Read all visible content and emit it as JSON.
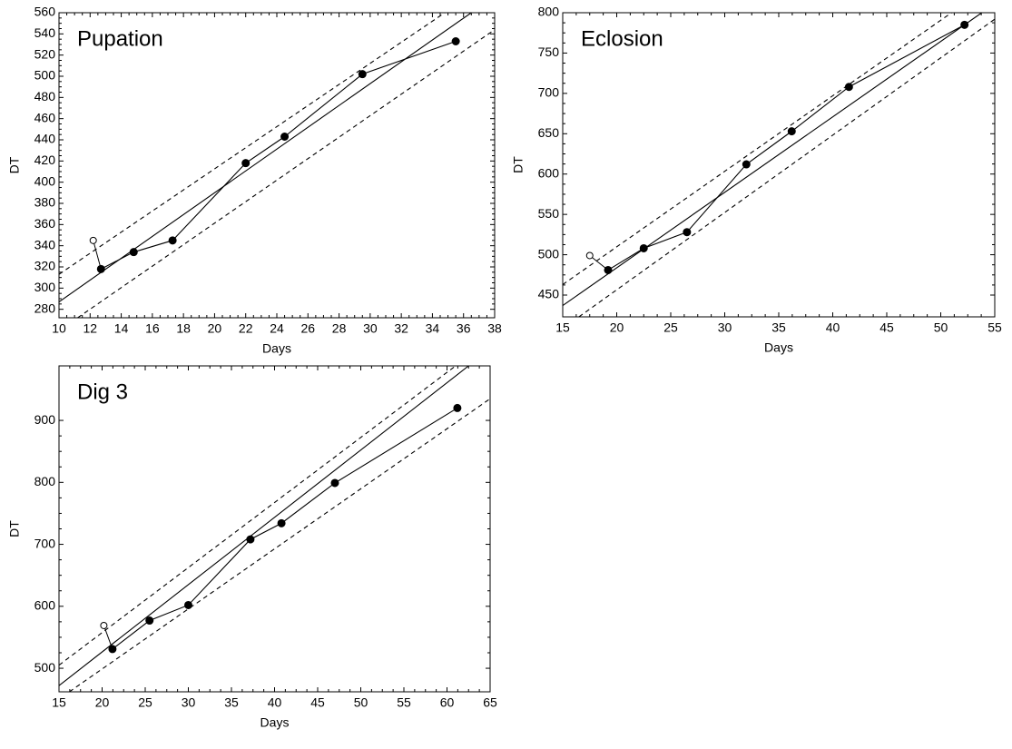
{
  "chart_data": [
    {
      "type": "scatter",
      "title": "Pupation",
      "x_label": "Days",
      "y_label": "DT",
      "color": "#000000",
      "xlim": [
        10,
        38
      ],
      "ylim": [
        272,
        560
      ],
      "xticks": [
        10,
        12,
        14,
        16,
        18,
        20,
        22,
        24,
        26,
        28,
        30,
        32,
        34,
        36,
        38
      ],
      "yticks": [
        280,
        300,
        320,
        340,
        360,
        380,
        400,
        420,
        440,
        460,
        480,
        500,
        520,
        540,
        560
      ],
      "series": [
        {
          "marker": "open",
          "connect": true,
          "x": [
            12.2
          ],
          "values": [
            345
          ]
        },
        {
          "marker": "filled",
          "line": "solid",
          "x": [
            12.7,
            14.8,
            17.3,
            22.0,
            24.5,
            29.5,
            35.5
          ],
          "values": [
            318,
            334,
            345,
            418,
            443,
            502,
            533
          ]
        },
        {
          "line": "solid",
          "x": [
            10,
            36.5
          ],
          "values": [
            287,
            560
          ]
        },
        {
          "line": "dashed",
          "x": [
            10,
            34.8
          ],
          "values": [
            313,
            560
          ]
        },
        {
          "line": "dashed",
          "x": [
            11.2,
            38
          ],
          "values": [
            272,
            544
          ]
        }
      ]
    },
    {
      "type": "scatter",
      "title": "Eclosion",
      "x_label": "Days",
      "y_label": "DT",
      "color": "#000000",
      "xlim": [
        15,
        55
      ],
      "ylim": [
        423,
        800
      ],
      "xticks": [
        15,
        20,
        25,
        30,
        35,
        40,
        45,
        50,
        55
      ],
      "yticks": [
        450,
        500,
        550,
        600,
        650,
        700,
        750,
        800
      ],
      "series": [
        {
          "marker": "open",
          "connect": true,
          "x": [
            17.5
          ],
          "values": [
            499
          ]
        },
        {
          "marker": "filled",
          "line": "solid",
          "x": [
            19.2,
            22.5,
            26.5,
            32.0,
            36.2,
            41.5,
            52.2
          ],
          "values": [
            481,
            508,
            528,
            612,
            653,
            708,
            785
          ]
        },
        {
          "line": "solid",
          "x": [
            15,
            53.8
          ],
          "values": [
            437,
            800
          ]
        },
        {
          "line": "dashed",
          "x": [
            15,
            51
          ],
          "values": [
            463,
            800
          ]
        },
        {
          "line": "dashed",
          "x": [
            16.5,
            55
          ],
          "values": [
            423,
            792
          ]
        }
      ]
    },
    {
      "type": "scatter",
      "title": "Dig 3",
      "x_label": "Days",
      "y_label": "DT",
      "color": "#000000",
      "xlim": [
        15,
        65
      ],
      "ylim": [
        462,
        988
      ],
      "xticks": [
        15,
        20,
        25,
        30,
        35,
        40,
        45,
        50,
        55,
        60,
        65
      ],
      "yticks": [
        500,
        600,
        700,
        800,
        900
      ],
      "series": [
        {
          "marker": "open",
          "connect": true,
          "x": [
            20.2
          ],
          "values": [
            569
          ]
        },
        {
          "marker": "filled",
          "line": "solid",
          "x": [
            21.2,
            25.5,
            30.0,
            37.2,
            40.8,
            47.0,
            61.2
          ],
          "values": [
            531,
            577,
            602,
            708,
            734,
            799,
            920
          ]
        },
        {
          "line": "solid",
          "x": [
            15,
            62.5
          ],
          "values": [
            472,
            988
          ]
        },
        {
          "line": "dashed",
          "x": [
            15,
            61
          ],
          "values": [
            505,
            988
          ]
        },
        {
          "line": "dashed",
          "x": [
            16.2,
            65
          ],
          "values": [
            462,
            935
          ]
        }
      ]
    }
  ]
}
